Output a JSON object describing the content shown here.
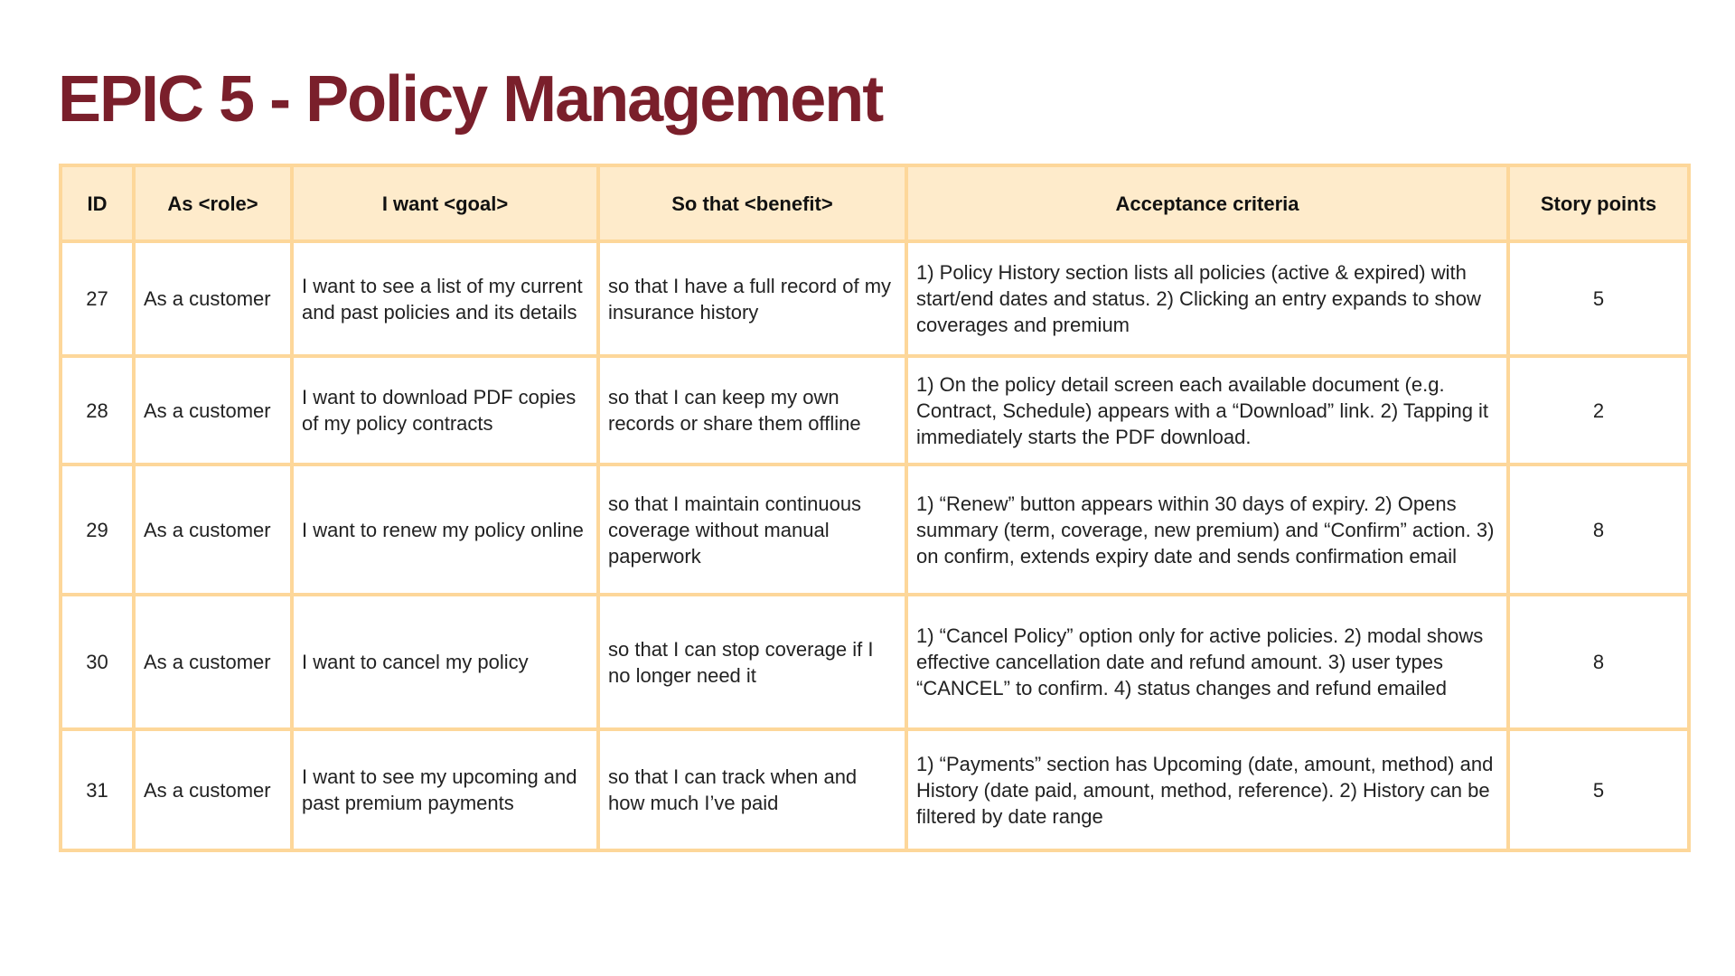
{
  "title": "EPIC 5 - Policy Management",
  "table": {
    "headers": {
      "id": "ID",
      "role": "As <role>",
      "goal": "I want <goal>",
      "benefit": "So that <benefit>",
      "criteria": "Acceptance criteria",
      "points": "Story points"
    },
    "rows": [
      {
        "id": "27",
        "role": "As a customer",
        "goal": "I want to see a list of my current and past policies and its details",
        "benefit": "so that I have a full record of my insurance history",
        "criteria": "1) Policy History section lists all policies (active & expired) with start/end dates and status. 2) Clicking an entry expands to show coverages and premium",
        "points": "5"
      },
      {
        "id": "28",
        "role": "As a customer",
        "goal": "I want to download PDF copies of my policy contracts",
        "benefit": "so that I can keep my own records or share them offline",
        "criteria": "1) On the policy detail screen each available document (e.g. Contract, Schedule) appears with a “Download” link. 2) Tapping it immediately starts the PDF download.",
        "points": "2"
      },
      {
        "id": "29",
        "role": "As a customer",
        "goal": "I want to renew my policy online",
        "benefit": "so that I maintain continuous coverage without manual paperwork",
        "criteria": "1) “Renew” button appears within 30 days of expiry. 2) Opens summary (term, coverage, new premium) and “Confirm” action. 3) on confirm, extends expiry date and sends confirmation email",
        "points": "8"
      },
      {
        "id": "30",
        "role": "As a customer",
        "goal": "I want to cancel my policy",
        "benefit": "so that I can stop coverage if I no longer need it",
        "criteria": "1) “Cancel Policy” option only for active policies. 2) modal shows effective cancellation date and refund amount. 3) user types “CANCEL” to confirm. 4) status changes and refund emailed",
        "points": "8"
      },
      {
        "id": "31",
        "role": "As a customer",
        "goal": "I want to see my upcoming and past premium payments",
        "benefit": "so that I can track when and how much I’ve paid",
        "criteria": "1) “Payments” section has Upcoming (date, amount, method) and History (date paid, amount, method, reference). 2) History can be filtered by date range",
        "points": "5"
      }
    ]
  }
}
